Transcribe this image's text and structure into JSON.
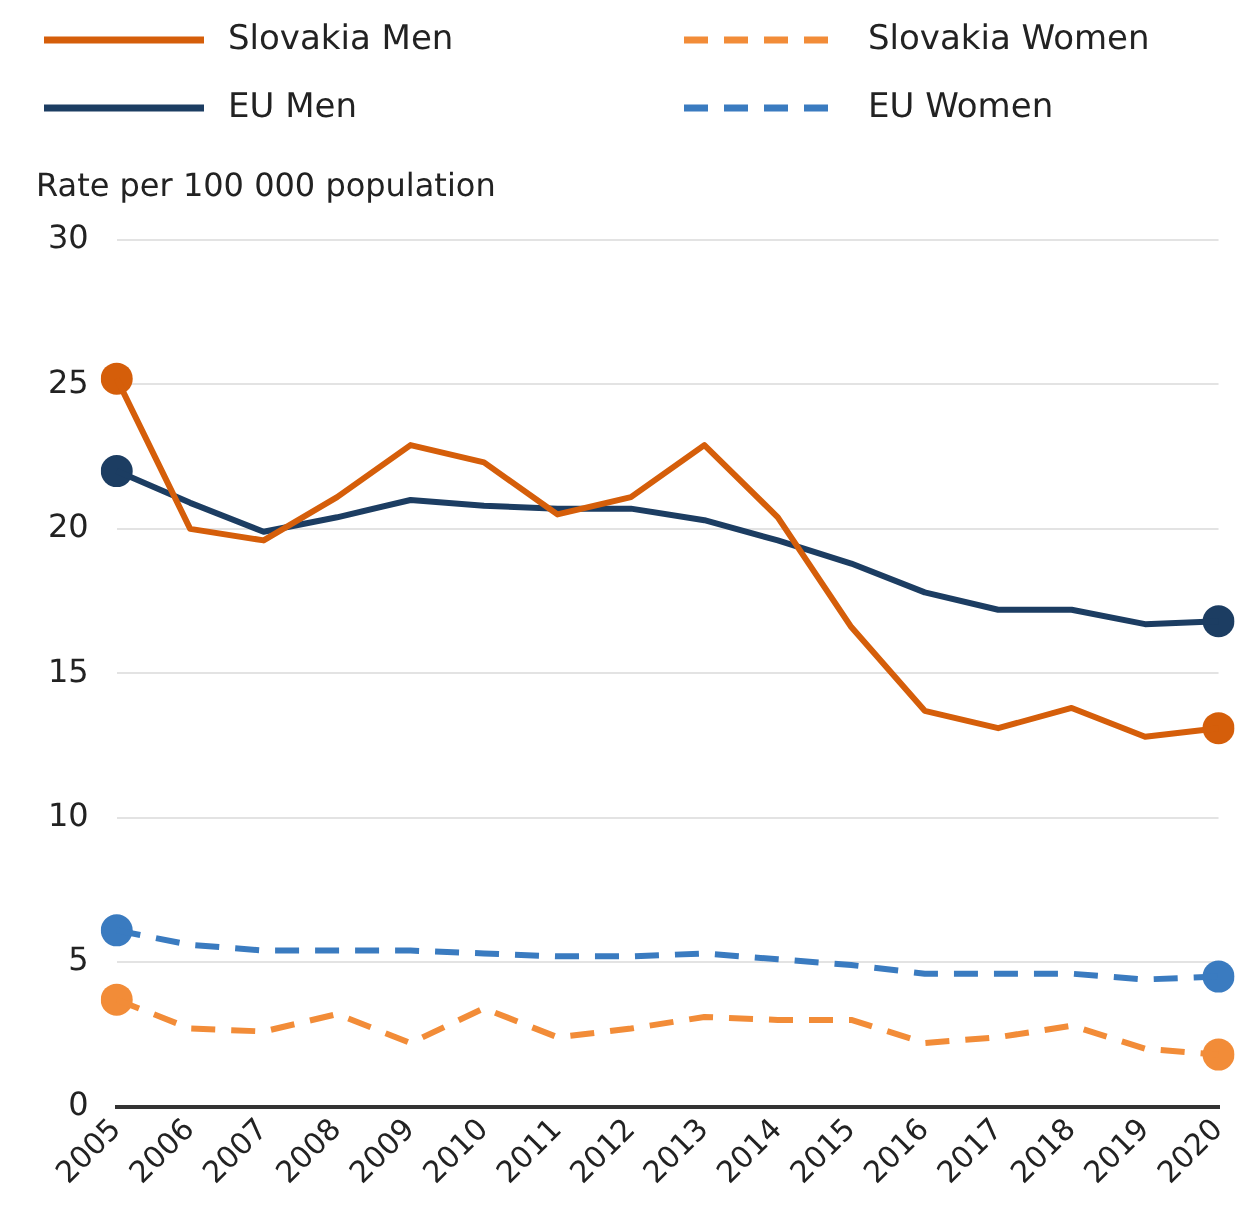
{
  "chart_data": {
    "type": "line",
    "ylabel": "Rate per 100 000 population",
    "categories": [
      "2005",
      "2006",
      "2007",
      "2008",
      "2009",
      "2010",
      "2011",
      "2012",
      "2013",
      "2014",
      "2015",
      "2016",
      "2017",
      "2018",
      "2019",
      "2020"
    ],
    "series": [
      {
        "name": "Slovakia Men",
        "color": "#d55e0a",
        "line_style": "solid",
        "values": [
          25.2,
          20.0,
          19.6,
          21.1,
          22.9,
          22.3,
          20.5,
          21.1,
          22.9,
          20.4,
          16.6,
          13.7,
          13.1,
          13.8,
          12.8,
          13.1
        ]
      },
      {
        "name": "Slovakia Women",
        "color": "#f28c38",
        "line_style": "dashed",
        "values": [
          3.7,
          2.7,
          2.6,
          3.2,
          2.2,
          3.4,
          2.4,
          2.7,
          3.1,
          3.0,
          3.0,
          2.2,
          2.4,
          2.8,
          2.0,
          1.8
        ]
      },
      {
        "name": "EU Men",
        "color": "#1c3d62",
        "line_style": "solid",
        "values": [
          22.0,
          20.9,
          19.9,
          20.4,
          21.0,
          20.8,
          20.7,
          20.7,
          20.3,
          19.6,
          18.8,
          17.8,
          17.2,
          17.2,
          16.7,
          16.8
        ]
      },
      {
        "name": "EU Women",
        "color": "#3a7bc0",
        "line_style": "dashed",
        "values": [
          6.1,
          5.6,
          5.4,
          5.4,
          5.4,
          5.3,
          5.2,
          5.2,
          5.3,
          5.1,
          4.9,
          4.6,
          4.6,
          4.6,
          4.4,
          4.5
        ]
      },
      {
        "type": "scatter",
        "color": "#d55e0a",
        "marker": "circle",
        "values": [
          25.2,
          null,
          null,
          null,
          null,
          null,
          null,
          null,
          null,
          null,
          null,
          null,
          null,
          null,
          null,
          13.1
        ]
      },
      {
        "type": "scatter",
        "color": "#f28c38",
        "marker": "circle",
        "values": [
          3.7,
          null,
          null,
          null,
          null,
          null,
          null,
          null,
          null,
          null,
          null,
          null,
          null,
          null,
          null,
          1.8
        ]
      },
      {
        "type": "scatter",
        "color": "#1c3d62",
        "marker": "circle",
        "values": [
          22.0,
          null,
          null,
          null,
          null,
          null,
          null,
          null,
          null,
          null,
          null,
          null,
          null,
          null,
          null,
          16.8
        ]
      },
      {
        "type": "scatter",
        "color": "#3a7bc0",
        "marker": "circle",
        "values": [
          6.1,
          null,
          null,
          null,
          null,
          null,
          null,
          null,
          null,
          null,
          null,
          null,
          null,
          null,
          null,
          4.5
        ]
      }
    ],
    "ylim": [
      0,
      30
    ],
    "yticks": [
      0,
      5,
      10,
      15,
      20,
      25,
      30
    ],
    "grid": "y",
    "legend": "top"
  }
}
